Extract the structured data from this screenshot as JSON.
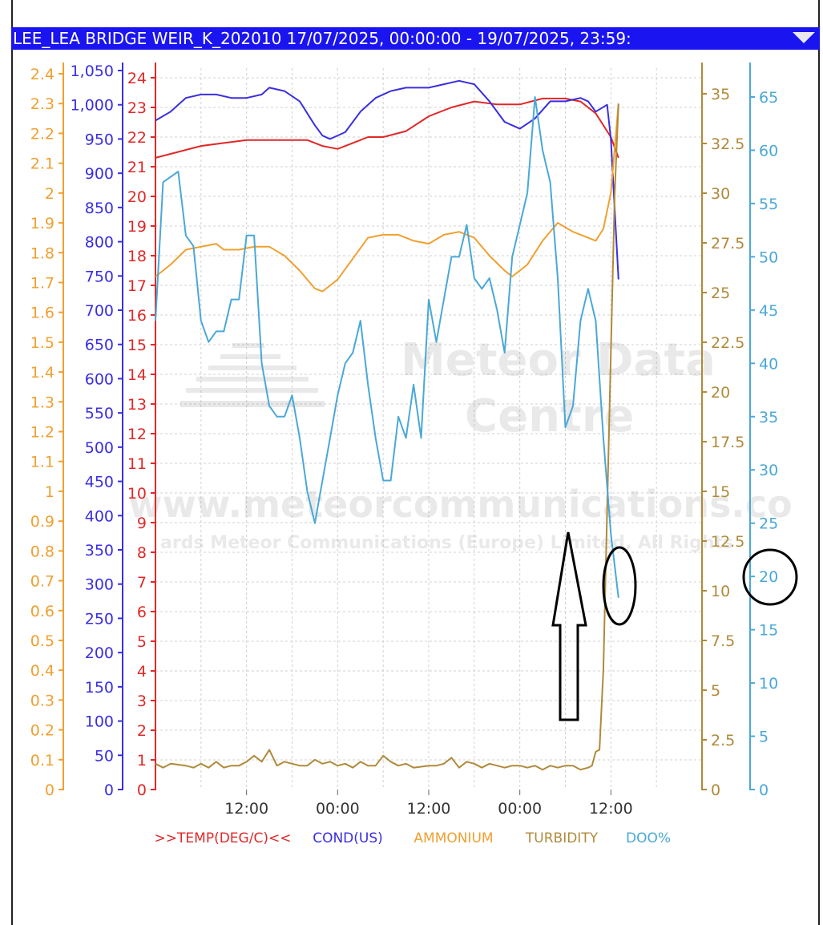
{
  "window": {
    "title": "LEE_LEA BRIDGE WEIR_K_202010 17/07/2025, 00:00:00 - 19/07/2025, 23:59:"
  },
  "watermark": {
    "line1": "Meteor Data",
    "line2": "Centre",
    "url": "www.meteorcommunications.co",
    "copyright": "ards Meteor Communications (Europe) Limited, All Rights"
  },
  "icons": {
    "collapse": "chevron-down-icon",
    "annotation_arrow": "up-arrow-icon"
  },
  "colors": {
    "temp": "#e02828",
    "cond": "#3a2ee0",
    "ammonium": "#f0a030",
    "turbidity": "#b08a3a",
    "doo": "#4aa8d8",
    "title_bar": "#1a14f0"
  },
  "chart_data": {
    "type": "line",
    "x": {
      "range_hours": [
        0,
        72
      ],
      "tick_labels": [
        "12:00",
        "00:00",
        "12:00",
        "00:00",
        "12:00"
      ],
      "tick_hours": [
        12,
        24,
        36,
        48,
        60
      ]
    },
    "axes": [
      {
        "id": "ammonium",
        "ylim": [
          0,
          2.4
        ],
        "ticks": [
          "0",
          "0.1",
          "0.2",
          "0.3",
          "0.4",
          "0.5",
          "0.6",
          "0.7",
          "0.8",
          "0.9",
          "1",
          "1.1",
          "1.2",
          "1.3",
          "1.4",
          "1.5",
          "1.6",
          "1.7",
          "1.8",
          "1.9",
          "2",
          "2.1",
          "2.2",
          "2.3",
          "2.4"
        ]
      },
      {
        "id": "cond",
        "ylim": [
          0,
          1050
        ],
        "ticks": [
          "0",
          "50",
          "100",
          "150",
          "200",
          "250",
          "300",
          "350",
          "400",
          "450",
          "500",
          "550",
          "600",
          "650",
          "700",
          "750",
          "800",
          "850",
          "900",
          "950",
          "1,000",
          "1,050"
        ]
      },
      {
        "id": "temp",
        "ylim": [
          0,
          24
        ],
        "ticks": [
          "0",
          "1",
          "2",
          "3",
          "4",
          "5",
          "6",
          "7",
          "8",
          "9",
          "10",
          "11",
          "12",
          "13",
          "14",
          "15",
          "16",
          "17",
          "18",
          "19",
          "20",
          "21",
          "22",
          "23",
          "24"
        ]
      },
      {
        "id": "turbidity",
        "ylim": [
          0,
          35
        ],
        "ticks": [
          "0",
          "2.5",
          "5",
          "7.5",
          "10",
          "12.5",
          "15",
          "17.5",
          "20",
          "22.5",
          "25",
          "27.5",
          "30",
          "32.5",
          "35"
        ]
      },
      {
        "id": "doo",
        "ylim": [
          0,
          65
        ],
        "ticks": [
          "0",
          "5",
          "10",
          "15",
          "20",
          "25",
          "30",
          "35",
          "40",
          "45",
          "50",
          "55",
          "60",
          "65"
        ]
      }
    ],
    "series": [
      {
        "name": ">>TEMP(DEG/C)<<",
        "axis": "temp",
        "color": "#e02828",
        "points": [
          [
            0,
            21.3
          ],
          [
            3,
            21.5
          ],
          [
            6,
            21.7
          ],
          [
            9,
            21.8
          ],
          [
            12,
            21.9
          ],
          [
            15,
            21.9
          ],
          [
            18,
            21.9
          ],
          [
            20,
            21.9
          ],
          [
            22,
            21.7
          ],
          [
            24,
            21.6
          ],
          [
            26,
            21.8
          ],
          [
            28,
            22.0
          ],
          [
            30,
            22.0
          ],
          [
            33,
            22.2
          ],
          [
            36,
            22.7
          ],
          [
            39,
            23.0
          ],
          [
            42,
            23.2
          ],
          [
            45,
            23.1
          ],
          [
            48,
            23.1
          ],
          [
            51,
            23.3
          ],
          [
            54,
            23.3
          ],
          [
            56,
            23.2
          ],
          [
            58,
            22.8
          ],
          [
            60,
            22.0
          ],
          [
            61,
            21.3
          ]
        ]
      },
      {
        "name": "COND(US)",
        "axis": "cond",
        "color": "#3a2ee0",
        "points": [
          [
            0,
            977
          ],
          [
            2,
            990
          ],
          [
            4,
            1010
          ],
          [
            6,
            1015
          ],
          [
            8,
            1015
          ],
          [
            10,
            1010
          ],
          [
            12,
            1010
          ],
          [
            14,
            1015
          ],
          [
            15,
            1025
          ],
          [
            17,
            1020
          ],
          [
            19,
            1005
          ],
          [
            21,
            970
          ],
          [
            22,
            955
          ],
          [
            23,
            950
          ],
          [
            25,
            960
          ],
          [
            27,
            990
          ],
          [
            29,
            1010
          ],
          [
            31,
            1020
          ],
          [
            33,
            1025
          ],
          [
            36,
            1025
          ],
          [
            38,
            1030
          ],
          [
            40,
            1035
          ],
          [
            42,
            1030
          ],
          [
            44,
            1005
          ],
          [
            46,
            975
          ],
          [
            48,
            965
          ],
          [
            50,
            980
          ],
          [
            52,
            1005
          ],
          [
            54,
            1005
          ],
          [
            56,
            1010
          ],
          [
            57,
            1005
          ],
          [
            58,
            990
          ],
          [
            59.5,
            1000
          ],
          [
            60,
            950
          ],
          [
            61,
            745
          ]
        ]
      },
      {
        "name": "AMMONIUM",
        "axis": "ammonium",
        "color": "#f0a030",
        "points": [
          [
            0,
            1.72
          ],
          [
            2,
            1.76
          ],
          [
            4,
            1.81
          ],
          [
            6,
            1.82
          ],
          [
            8,
            1.83
          ],
          [
            9,
            1.81
          ],
          [
            11,
            1.81
          ],
          [
            13,
            1.82
          ],
          [
            15,
            1.82
          ],
          [
            17,
            1.79
          ],
          [
            19,
            1.74
          ],
          [
            21,
            1.68
          ],
          [
            22,
            1.67
          ],
          [
            24,
            1.71
          ],
          [
            26,
            1.78
          ],
          [
            28,
            1.85
          ],
          [
            30,
            1.86
          ],
          [
            32,
            1.86
          ],
          [
            34,
            1.84
          ],
          [
            36,
            1.83
          ],
          [
            38,
            1.86
          ],
          [
            40,
            1.87
          ],
          [
            42,
            1.85
          ],
          [
            44,
            1.79
          ],
          [
            46,
            1.74
          ],
          [
            47,
            1.72
          ],
          [
            49,
            1.76
          ],
          [
            51,
            1.84
          ],
          [
            53,
            1.9
          ],
          [
            55,
            1.87
          ],
          [
            57,
            1.85
          ],
          [
            58,
            1.84
          ],
          [
            59,
            1.88
          ],
          [
            60,
            2.0
          ],
          [
            61,
            2.3
          ]
        ]
      },
      {
        "name": "TURBIDITY",
        "axis": "turbidity",
        "color": "#b08a3a",
        "points": [
          [
            0,
            1.3
          ],
          [
            1,
            1.1
          ],
          [
            2,
            1.3
          ],
          [
            4,
            1.2
          ],
          [
            5,
            1.1
          ],
          [
            6,
            1.3
          ],
          [
            7,
            1.1
          ],
          [
            8,
            1.4
          ],
          [
            9,
            1.1
          ],
          [
            10,
            1.2
          ],
          [
            11,
            1.2
          ],
          [
            12,
            1.4
          ],
          [
            13,
            1.7
          ],
          [
            14,
            1.4
          ],
          [
            15,
            2.0
          ],
          [
            16,
            1.2
          ],
          [
            17,
            1.4
          ],
          [
            18,
            1.3
          ],
          [
            19,
            1.2
          ],
          [
            20,
            1.2
          ],
          [
            21,
            1.5
          ],
          [
            22,
            1.3
          ],
          [
            23,
            1.4
          ],
          [
            24,
            1.2
          ],
          [
            25,
            1.3
          ],
          [
            26,
            1.1
          ],
          [
            27,
            1.4
          ],
          [
            28,
            1.2
          ],
          [
            29,
            1.2
          ],
          [
            30,
            1.7
          ],
          [
            31,
            1.4
          ],
          [
            32,
            1.2
          ],
          [
            33,
            1.3
          ],
          [
            34,
            1.1
          ],
          [
            36,
            1.2
          ],
          [
            37,
            1.2
          ],
          [
            38,
            1.3
          ],
          [
            39,
            1.6
          ],
          [
            40,
            1.1
          ],
          [
            41,
            1.4
          ],
          [
            42,
            1.3
          ],
          [
            43,
            1.1
          ],
          [
            44,
            1.3
          ],
          [
            45,
            1.2
          ],
          [
            46,
            1.1
          ],
          [
            47,
            1.2
          ],
          [
            48,
            1.2
          ],
          [
            49,
            1.1
          ],
          [
            50,
            1.2
          ],
          [
            51,
            1.0
          ],
          [
            52,
            1.2
          ],
          [
            53,
            1.1
          ],
          [
            54,
            1.2
          ],
          [
            55,
            1.2
          ],
          [
            56,
            1.0
          ],
          [
            57,
            1.1
          ],
          [
            57.5,
            1.2
          ],
          [
            58,
            1.9
          ],
          [
            58.5,
            2.0
          ],
          [
            59,
            6
          ],
          [
            59.5,
            14
          ],
          [
            60,
            22
          ],
          [
            60.5,
            30
          ],
          [
            61,
            34.5
          ]
        ]
      },
      {
        "name": "DOO%",
        "axis": "doo",
        "color": "#4aa8d8",
        "points": [
          [
            0,
            44
          ],
          [
            1,
            57
          ],
          [
            3,
            58
          ],
          [
            4,
            52
          ],
          [
            5,
            51
          ],
          [
            6,
            44
          ],
          [
            7,
            42
          ],
          [
            8,
            43
          ],
          [
            9,
            43
          ],
          [
            10,
            46
          ],
          [
            11,
            46
          ],
          [
            12,
            52
          ],
          [
            13,
            52
          ],
          [
            14,
            40
          ],
          [
            15,
            36
          ],
          [
            16,
            35
          ],
          [
            17,
            35
          ],
          [
            18,
            37
          ],
          [
            19,
            33
          ],
          [
            20,
            28
          ],
          [
            21,
            25
          ],
          [
            22,
            29
          ],
          [
            23,
            33
          ],
          [
            24,
            37
          ],
          [
            25,
            40
          ],
          [
            26,
            41
          ],
          [
            27,
            44
          ],
          [
            28,
            38
          ],
          [
            29,
            33
          ],
          [
            30,
            29
          ],
          [
            31,
            29
          ],
          [
            32,
            35
          ],
          [
            33,
            33
          ],
          [
            34,
            38
          ],
          [
            35,
            33
          ],
          [
            36,
            46
          ],
          [
            37,
            42
          ],
          [
            38,
            46
          ],
          [
            39,
            50
          ],
          [
            40,
            50
          ],
          [
            41,
            53
          ],
          [
            42,
            48
          ],
          [
            43,
            47
          ],
          [
            44,
            48
          ],
          [
            45,
            45
          ],
          [
            46,
            41
          ],
          [
            47,
            50
          ],
          [
            48,
            53
          ],
          [
            49,
            56
          ],
          [
            50,
            65
          ],
          [
            51,
            60
          ],
          [
            52,
            57
          ],
          [
            53,
            48
          ],
          [
            54,
            34
          ],
          [
            55,
            36
          ],
          [
            56,
            44
          ],
          [
            57,
            47
          ],
          [
            58,
            44
          ],
          [
            59,
            33
          ],
          [
            60,
            24
          ],
          [
            61,
            18
          ]
        ]
      }
    ],
    "legend": {
      "placement": "bottom",
      "labels": [
        ">>TEMP(DEG/C)<<",
        "COND(US)",
        "AMMONIUM",
        "TURBIDITY",
        "DOO%"
      ]
    },
    "grid": true
  }
}
